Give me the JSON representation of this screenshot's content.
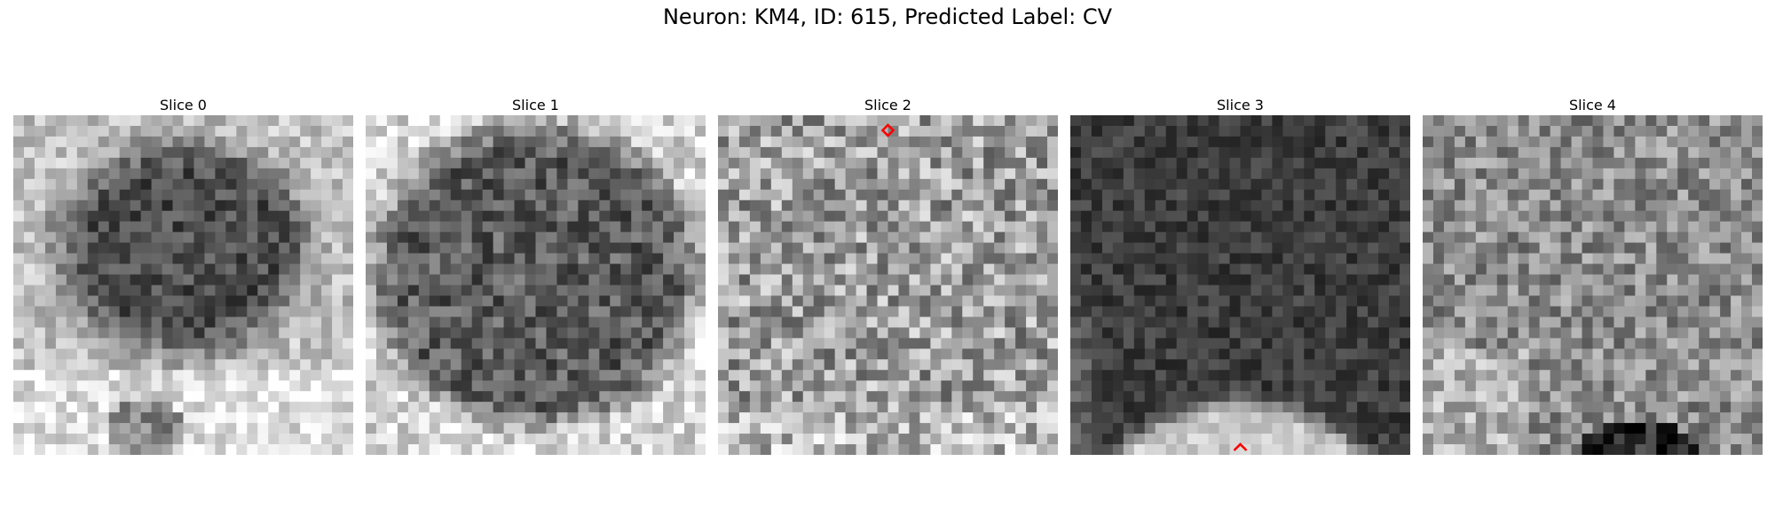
{
  "figure": {
    "title": "Neuron: KM4, ID: 615, Predicted Label: CV"
  },
  "slices": [
    {
      "label": "Slice 0",
      "pattern": "dark-blob-center-light-bottom"
    },
    {
      "label": "Slice 1",
      "pattern": "dark-round-body-light-corners"
    },
    {
      "label": "Slice 2",
      "pattern": "light-mottled-noise",
      "marker": "diamond"
    },
    {
      "label": "Slice 3",
      "pattern": "dark-top-light-bottom",
      "marker": "caret"
    },
    {
      "label": "Slice 4",
      "pattern": "uniform-gray-noise-dark-bottom"
    }
  ],
  "colors": {
    "marker": "#ff0000",
    "background": "#ffffff",
    "colormap": "gray"
  }
}
